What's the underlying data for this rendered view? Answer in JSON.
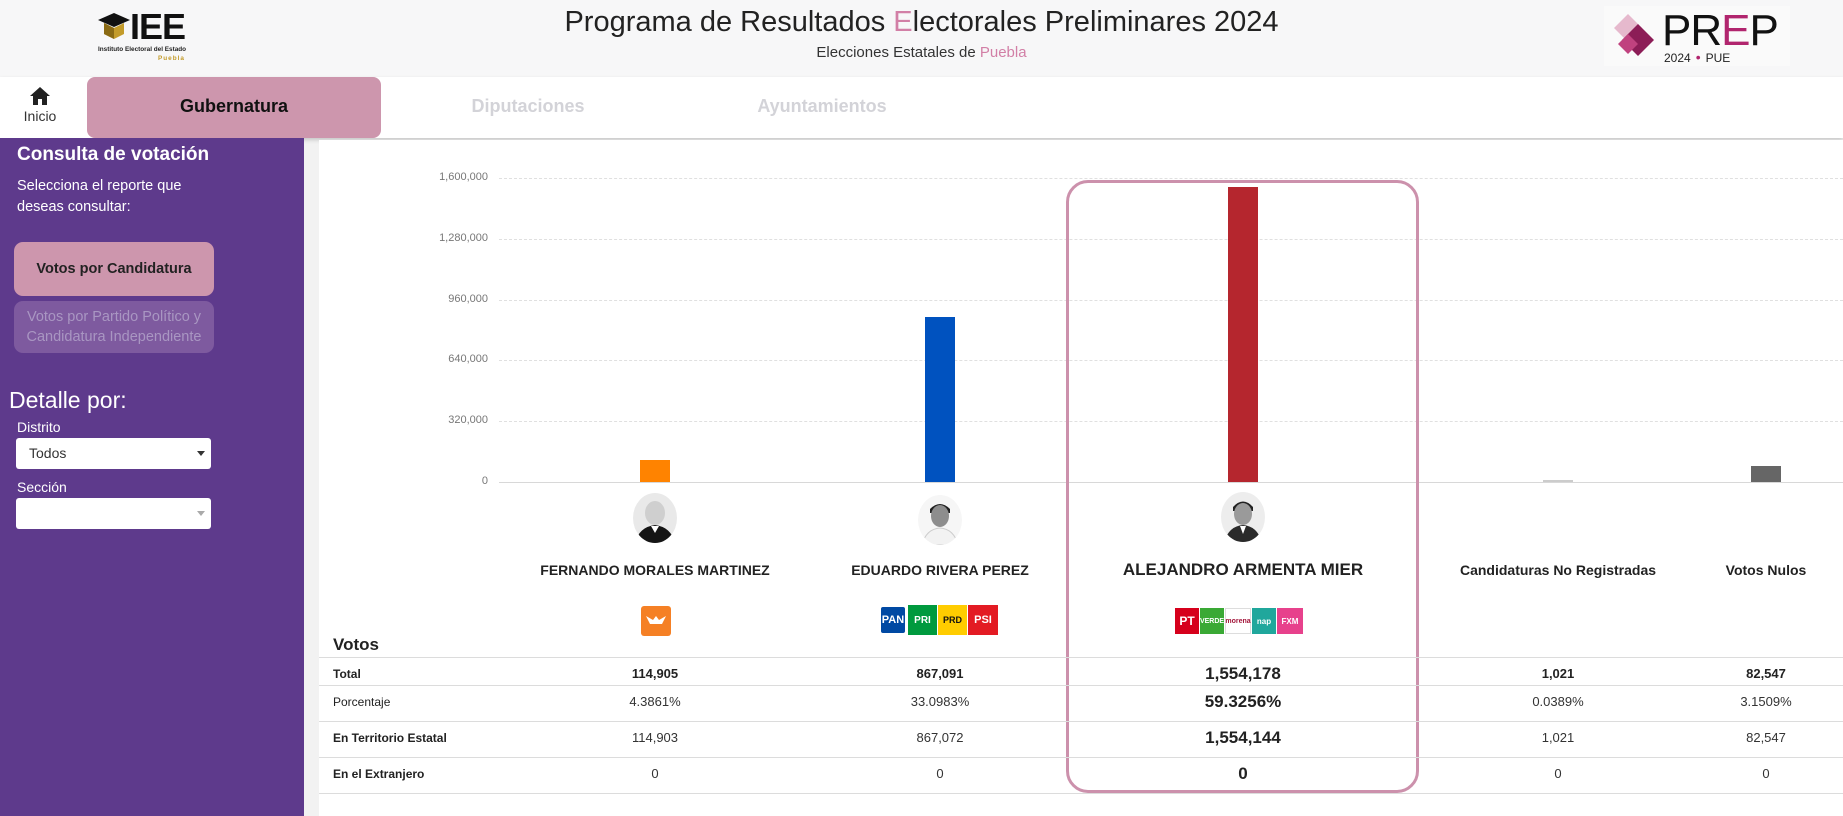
{
  "header": {
    "iee_logo": {
      "abbr": "IEE",
      "name": "Instituto Electoral del Estado",
      "state": "Puebla"
    },
    "title_pre": "Programa de Resultados ",
    "title_accent": "E",
    "title_post": "lectorales Preliminares 2024",
    "subtitle_pre": "Elecciones Estatales de ",
    "subtitle_accent": "Puebla",
    "prep_logo": {
      "pr": "PR",
      "e": "E",
      "p": "P",
      "year": "2024",
      "state": "PUE"
    },
    "accent_color": "#d27fa6"
  },
  "nav": {
    "home_label": "Inicio",
    "tabs": [
      {
        "label": "Gubernatura",
        "active": true
      },
      {
        "label": "Diputaciones",
        "active": false
      },
      {
        "label": "Ayuntamientos",
        "active": false
      }
    ]
  },
  "sidebar": {
    "title": "Consulta de votación",
    "description": "Selecciona el reporte que deseas consultar:",
    "reports": [
      {
        "label": "Votos por Candidatura",
        "active": true
      },
      {
        "label": "Votos por Partido Político y Candidatura Independiente",
        "active": false
      }
    ],
    "detail_title": "Detalle por:",
    "distrito_label": "Distrito",
    "distrito_value": "Todos",
    "seccion_label": "Sección",
    "seccion_value": "",
    "bg_color": "#5e3a8c"
  },
  "chart_data": {
    "type": "bar",
    "y_ticks": [
      "1,600,000",
      "1,280,000",
      "960,000",
      "640,000",
      "320,000",
      "0"
    ],
    "ylim": [
      0,
      1600000
    ],
    "categories": [
      "FERNANDO MORALES MARTINEZ",
      "EDUARDO RIVERA PEREZ",
      "ALEJANDRO ARMENTA MIER",
      "Candidaturas No Registradas",
      "Votos Nulos"
    ],
    "values": [
      114905,
      867091,
      1554178,
      1021,
      82547
    ],
    "colors": [
      "#ff8300",
      "#0052bf",
      "#b5262e",
      "#cccccc",
      "#666666"
    ],
    "highlighted": "ALEJANDRO ARMENTA MIER",
    "grid": true
  },
  "parties": {
    "fernando": [
      {
        "name": "movimiento-ciudadano",
        "color": "#f58025",
        "text": ""
      }
    ],
    "eduardo": [
      {
        "name": "PAN",
        "color": "#0049a3",
        "text": "PAN"
      },
      {
        "name": "PRI",
        "color": "#009a3e",
        "text": "PRI"
      },
      {
        "name": "PRD",
        "color": "#ffcc00",
        "text": "PRD"
      },
      {
        "name": "PSI",
        "color": "#e31b23",
        "text": "PSI"
      }
    ],
    "alejandro": [
      {
        "name": "PT",
        "color": "#d6001c",
        "text": "PT"
      },
      {
        "name": "PVEM",
        "color": "#3aa935",
        "text": "VERDE"
      },
      {
        "name": "morena",
        "color": "#ffffff",
        "text": "morena"
      },
      {
        "name": "NAP",
        "color": "#20a79c",
        "text": "nap"
      },
      {
        "name": "FXMP",
        "color": "#e7418c",
        "text": "FXM"
      }
    ]
  },
  "table": {
    "heading": "Votos",
    "rows": [
      {
        "label": "Total",
        "bold": true,
        "values": [
          "114,905",
          "867,091",
          "1,554,178",
          "1,021",
          "82,547"
        ]
      },
      {
        "label": "Porcentaje",
        "bold": false,
        "values": [
          "4.3861%",
          "33.0983%",
          "59.3256%",
          "0.0389%",
          "3.1509%"
        ]
      },
      {
        "label": "En Territorio Estatal",
        "bold": true,
        "values": [
          "114,903",
          "867,072",
          "1,554,144",
          "1,021",
          "82,547"
        ]
      },
      {
        "label": "En el Extranjero",
        "bold": true,
        "values": [
          "0",
          "0",
          "0",
          "0",
          "0"
        ]
      }
    ]
  }
}
